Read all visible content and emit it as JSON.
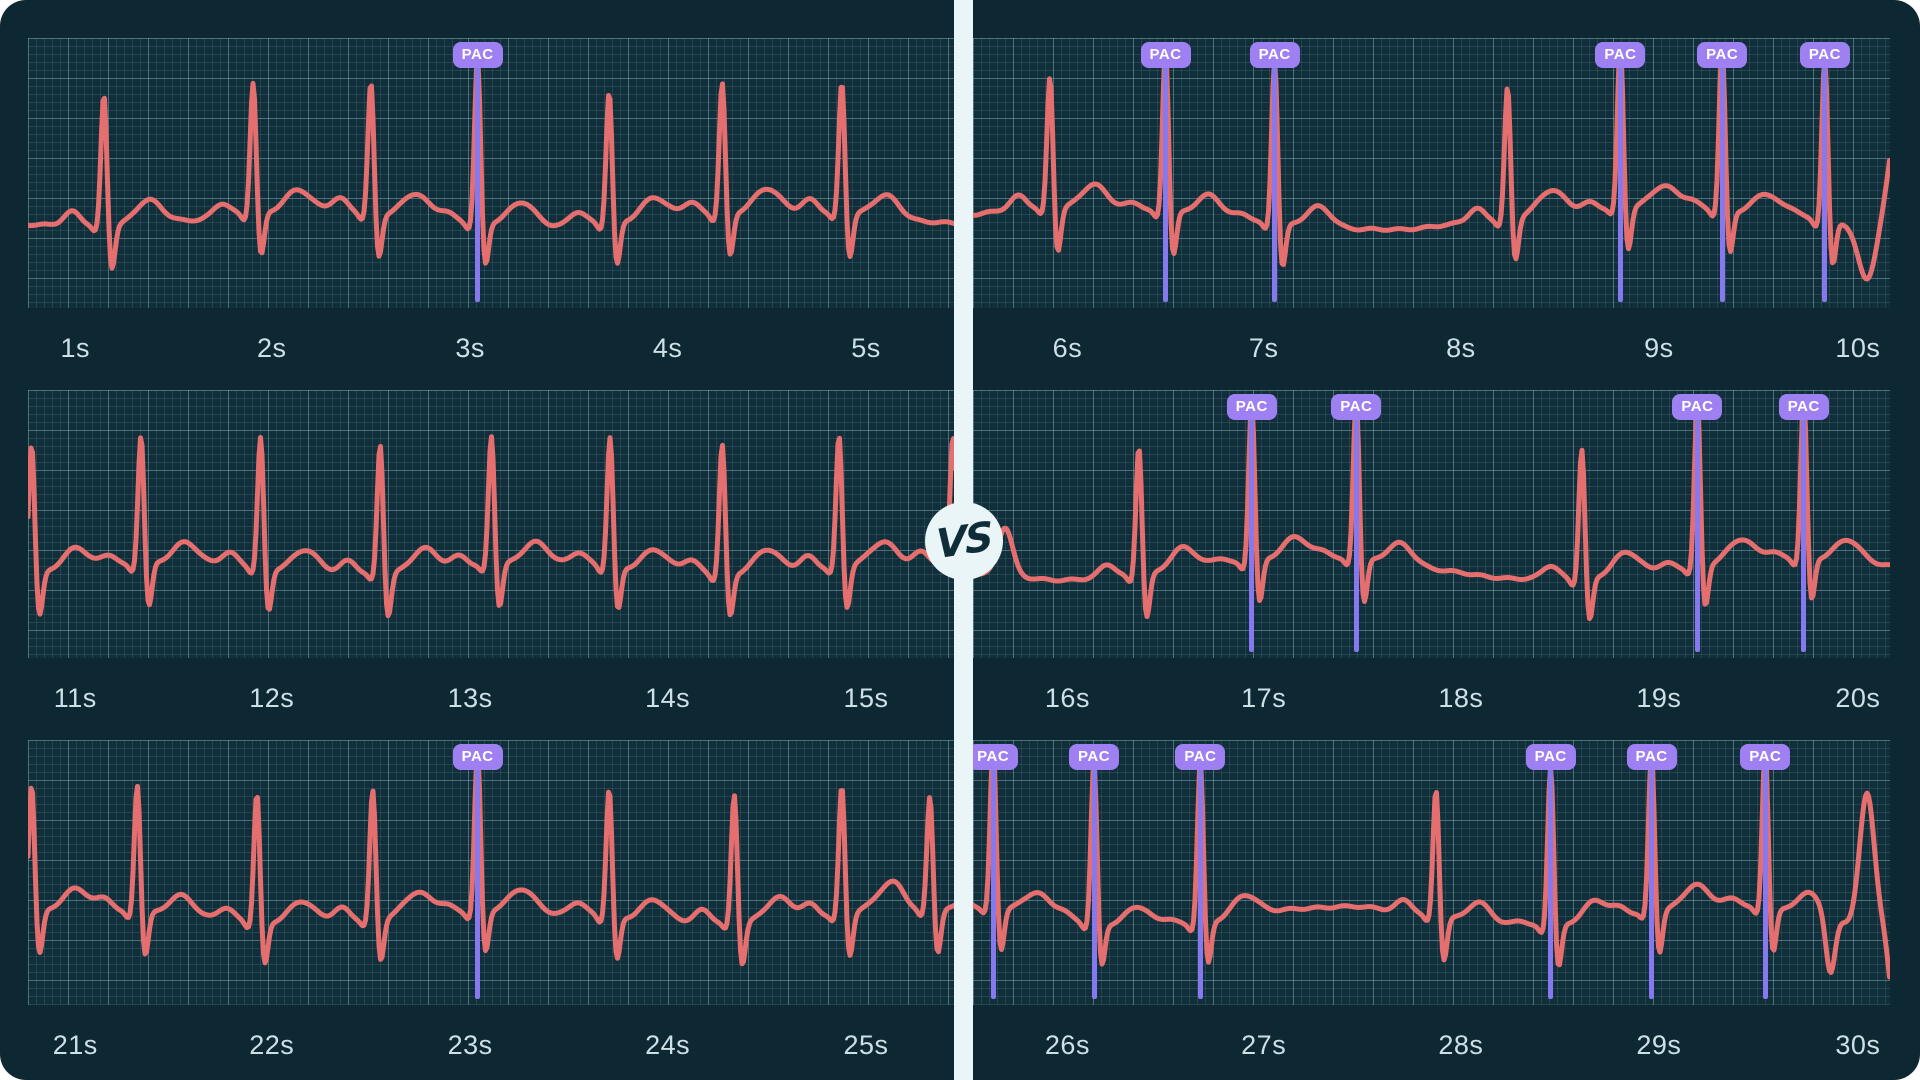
{
  "vs_label": "VS",
  "pac_label": "PAC",
  "colors": {
    "page_bg": "#ffffff",
    "panel_bg": "#0d2733",
    "grid_bg": "#112f3a",
    "grid_minor": "rgba(143,190,200,0.14)",
    "grid_major": "rgba(143,190,200,0.36)",
    "trace": "#e56e6e",
    "pac_badge_bg": "#9f80f2",
    "pac_line": "#8678ee",
    "tick_text": "#cde0e7",
    "divider_bg": "#eaf5f7",
    "vs_text": "#0f2d38"
  },
  "chart_data": {
    "type": "line",
    "unit_x": "seconds",
    "seconds_per_strip": 5,
    "pac_count_left": 2,
    "pac_count_right": 15,
    "waveform_params": {
      "baseline_frac": 0.67,
      "r_amp_normal": 0.5,
      "r_amp_pac": 0.62,
      "s_dip": 0.17,
      "p_amp": 0.05,
      "t_amp": 0.085
    },
    "strips": [
      {
        "id": "left-1",
        "panel": "left",
        "row": 0,
        "time_ticks": [
          {
            "label": "1s",
            "pos_pct": 5.1
          },
          {
            "label": "2s",
            "pos_pct": 26.3
          },
          {
            "label": "3s",
            "pos_pct": 47.7
          },
          {
            "label": "4s",
            "pos_pct": 69.0
          },
          {
            "label": "5s",
            "pos_pct": 90.4
          }
        ],
        "beats": [
          {
            "t": 0.082,
            "type": "normal"
          },
          {
            "t": 0.243,
            "type": "normal"
          },
          {
            "t": 0.37,
            "type": "normal"
          },
          {
            "t": 0.485,
            "type": "pac"
          },
          {
            "t": 0.627,
            "type": "normal"
          },
          {
            "t": 0.749,
            "type": "normal"
          },
          {
            "t": 0.878,
            "type": "normal"
          }
        ],
        "pac_times_s": [
          3.0
        ],
        "wander": {
          "amp": 7,
          "cycles": 2.0,
          "phase": 0.8
        }
      },
      {
        "id": "right-1",
        "panel": "right",
        "row": 0,
        "time_ticks": [
          {
            "label": "6s",
            "pos_pct": 10.3
          },
          {
            "label": "7s",
            "pos_pct": 31.7
          },
          {
            "label": "8s",
            "pos_pct": 53.2
          },
          {
            "label": "9s",
            "pos_pct": 74.8
          },
          {
            "label": "10s",
            "pos_pct": 96.5
          }
        ],
        "beats": [
          {
            "t": 0.084,
            "type": "normal"
          },
          {
            "t": 0.21,
            "type": "pac"
          },
          {
            "t": 0.329,
            "type": "pac"
          },
          {
            "t": 0.583,
            "type": "normal"
          },
          {
            "t": 0.706,
            "type": "pac"
          },
          {
            "t": 0.817,
            "type": "pac"
          },
          {
            "t": 0.929,
            "type": "pac"
          },
          {
            "t": 0.975,
            "type": "hump",
            "a": -0.28,
            "w": 0.05
          },
          {
            "t": 1.015,
            "type": "hump",
            "a": 0.55,
            "w": 0.06
          }
        ],
        "pac_times_s": [
          6.5,
          7.1,
          8.8,
          9.3,
          9.9
        ],
        "wander": {
          "amp": 11,
          "cycles": 1.6,
          "phase": 3.6
        }
      },
      {
        "id": "left-2",
        "panel": "left",
        "row": 1,
        "time_ticks": [
          {
            "label": "11s",
            "pos_pct": 5.1
          },
          {
            "label": "12s",
            "pos_pct": 26.3
          },
          {
            "label": "13s",
            "pos_pct": 47.7
          },
          {
            "label": "14s",
            "pos_pct": 69.0
          },
          {
            "label": "15s",
            "pos_pct": 90.4
          }
        ],
        "beats": [
          {
            "t": 0.004,
            "type": "normal"
          },
          {
            "t": 0.122,
            "type": "normal"
          },
          {
            "t": 0.251,
            "type": "normal"
          },
          {
            "t": 0.38,
            "type": "normal"
          },
          {
            "t": 0.5,
            "type": "normal"
          },
          {
            "t": 0.628,
            "type": "normal"
          },
          {
            "t": 0.749,
            "type": "normal"
          },
          {
            "t": 0.875,
            "type": "normal"
          },
          {
            "t": 0.998,
            "type": "normal"
          }
        ],
        "pac_times_s": [],
        "wander": {
          "amp": 5,
          "cycles": 2.6,
          "phase": 2.0
        }
      },
      {
        "id": "right-2",
        "panel": "right",
        "row": 1,
        "time_ticks": [
          {
            "label": "16s",
            "pos_pct": 10.3
          },
          {
            "label": "17s",
            "pos_pct": 31.7
          },
          {
            "label": "18s",
            "pos_pct": 53.2
          },
          {
            "label": "19s",
            "pos_pct": 74.8
          },
          {
            "label": "20s",
            "pos_pct": 96.5
          }
        ],
        "beats": [
          {
            "t": 0.035,
            "type": "hump",
            "a": 0.18,
            "w": 0.04
          },
          {
            "t": 0.181,
            "type": "normal"
          },
          {
            "t": 0.304,
            "type": "pac"
          },
          {
            "t": 0.418,
            "type": "pac"
          },
          {
            "t": 0.664,
            "type": "normal"
          },
          {
            "t": 0.79,
            "type": "pac"
          },
          {
            "t": 0.906,
            "type": "pac"
          }
        ],
        "pac_times_s": [
          16.9,
          17.5,
          19.2,
          19.7
        ],
        "wander": {
          "amp": 10,
          "cycles": 1.9,
          "phase": 0.3
        }
      },
      {
        "id": "left-3",
        "panel": "left",
        "row": 2,
        "time_ticks": [
          {
            "label": "21s",
            "pos_pct": 5.1
          },
          {
            "label": "22s",
            "pos_pct": 26.3
          },
          {
            "label": "23s",
            "pos_pct": 47.7
          },
          {
            "label": "24s",
            "pos_pct": 69.0
          },
          {
            "label": "25s",
            "pos_pct": 90.4
          }
        ],
        "beats": [
          {
            "t": 0.004,
            "type": "normal"
          },
          {
            "t": 0.118,
            "type": "normal"
          },
          {
            "t": 0.247,
            "type": "normal"
          },
          {
            "t": 0.372,
            "type": "normal"
          },
          {
            "t": 0.485,
            "type": "pac"
          },
          {
            "t": 0.627,
            "type": "normal"
          },
          {
            "t": 0.762,
            "type": "normal"
          },
          {
            "t": 0.878,
            "type": "normal"
          },
          {
            "t": 0.973,
            "type": "normal",
            "a": 0.45
          }
        ],
        "pac_times_s": [
          23.0
        ],
        "wander": {
          "amp": 6,
          "cycles": 2.2,
          "phase": 4.0
        }
      },
      {
        "id": "right-3",
        "panel": "right",
        "row": 2,
        "time_ticks": [
          {
            "label": "26s",
            "pos_pct": 10.3
          },
          {
            "label": "27s",
            "pos_pct": 31.7
          },
          {
            "label": "28s",
            "pos_pct": 53.2
          },
          {
            "label": "29s",
            "pos_pct": 74.8
          },
          {
            "label": "30s",
            "pos_pct": 96.5
          }
        ],
        "beats": [
          {
            "t": 0.022,
            "type": "pac"
          },
          {
            "t": 0.132,
            "type": "pac"
          },
          {
            "t": 0.248,
            "type": "pac"
          },
          {
            "t": 0.505,
            "type": "normal"
          },
          {
            "t": 0.63,
            "type": "pac"
          },
          {
            "t": 0.74,
            "type": "pac"
          },
          {
            "t": 0.864,
            "type": "pac"
          },
          {
            "t": 0.935,
            "type": "hump",
            "a": -0.22,
            "w": 0.025
          },
          {
            "t": 0.975,
            "type": "hump",
            "a": 0.5,
            "w": 0.04
          },
          {
            "t": 1.005,
            "type": "hump",
            "a": -0.3,
            "w": 0.03
          }
        ],
        "pac_times_s": [
          25.6,
          26.1,
          26.7,
          28.5,
          29.0,
          29.5
        ],
        "wander": {
          "amp": 11,
          "cycles": 2.4,
          "phase": 5.0
        }
      }
    ]
  }
}
